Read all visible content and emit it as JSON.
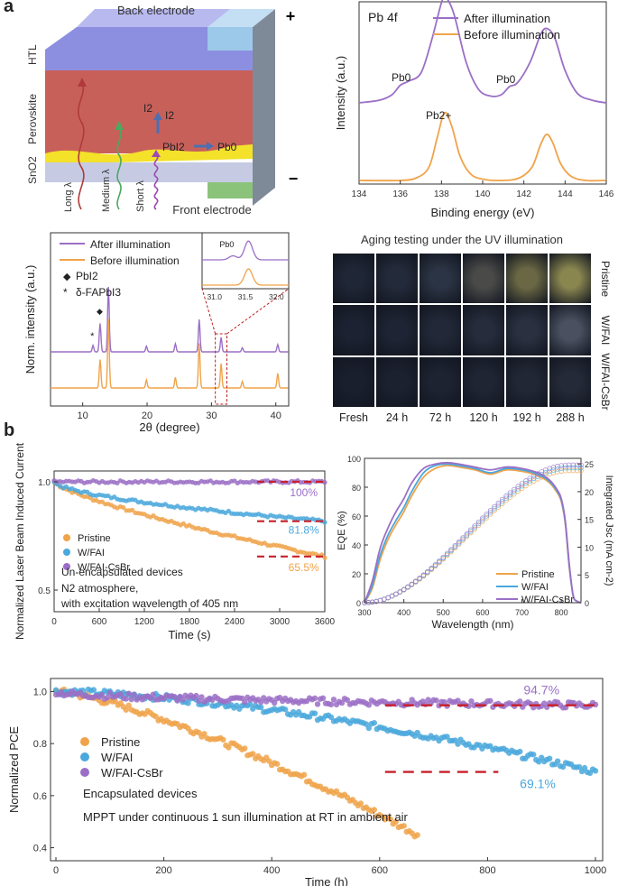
{
  "figure": {
    "panel_a_label": "a",
    "panel_b_label": "b"
  },
  "device_schematic": {
    "back_electrode": "Back electrode",
    "front_electrode": "Front electrode",
    "plus_sign": "+",
    "minus_sign": "−",
    "layers": {
      "htl": "HTL",
      "perovskite": "Perovskite",
      "sno2": "SnO2"
    },
    "species": {
      "i2_a": "I2",
      "i2_b": "I2",
      "pbi2": "PbI2",
      "pb0": "Pb0"
    },
    "light": {
      "long": "Long λ",
      "medium": "Medium λ",
      "short": "Short λ"
    },
    "colors": {
      "htl": "#8c8fe0",
      "perovskite": "#c8605a",
      "sno2": "#c6cbe3",
      "yellow": "#f3e12a",
      "back_electrode": "#9cc9e9",
      "front_electrode": "#8cc37a"
    }
  },
  "xps": {
    "title": "Pb 4f",
    "pb0_left": "Pb0",
    "pb0_right": "Pb0",
    "pb2plus": "Pb2+"
  },
  "xrd_inset": {
    "pb0_label": "Pb0",
    "ticks": [
      "31.0",
      "31.5",
      "32.0"
    ]
  },
  "xrd_markers": {
    "pbi2": "PbI2",
    "dfapbi3": "δ-FAPbI3",
    "diamond": "◆",
    "star": "*"
  },
  "aging": {
    "title": "Aging testing under the UV illumination",
    "rows": [
      "Pristine",
      "W/FAI",
      "W/FAI-CsBr"
    ],
    "columns": [
      "Fresh",
      "24 h",
      "72 h",
      "120 h",
      "192 h",
      "288 h"
    ]
  },
  "lbic_notes": {
    "line1": "Un-encapsulated devices",
    "line2": "N2 atmosphere,",
    "line3": "with excitation wavelength of 405 nm"
  },
  "mppt_notes": {
    "line1": "Encapsulated devices",
    "line2": "MPPT under continuous 1 sun illumination at RT in ambient air"
  },
  "chart_data": [
    {
      "id": "xps",
      "type": "line",
      "title": "Pb 4f",
      "xlabel": "Binding energy (eV)",
      "ylabel": "Intensity (a.u.)",
      "xlim": [
        134,
        146
      ],
      "xticks": [
        "134",
        "136",
        "138",
        "140",
        "142",
        "144",
        "146"
      ],
      "legend": [
        "After illumination",
        "Before illumination"
      ],
      "series": [
        {
          "name": "After illumination",
          "color": "#9b6fc6",
          "x": [
            134,
            135,
            135.6,
            136.0,
            136.4,
            137.0,
            137.5,
            138.0,
            138.2,
            138.6,
            139.2,
            139.8,
            140.4,
            140.9,
            141.3,
            141.7,
            142.3,
            142.8,
            143.1,
            143.5,
            144.0,
            144.6,
            145.3,
            146
          ],
          "y": [
            0.0,
            0.02,
            0.06,
            0.13,
            0.16,
            0.22,
            0.45,
            0.74,
            0.78,
            0.66,
            0.3,
            0.1,
            0.05,
            0.06,
            0.12,
            0.15,
            0.3,
            0.5,
            0.55,
            0.48,
            0.24,
            0.07,
            0.02,
            0.0
          ]
        },
        {
          "name": "Before illumination",
          "color": "#f0a34a",
          "x": [
            134,
            136,
            136.8,
            137.4,
            137.8,
            138.15,
            138.5,
            138.9,
            139.4,
            140,
            141,
            141.8,
            142.4,
            142.8,
            143.1,
            143.4,
            143.8,
            144.3,
            145,
            146
          ],
          "y": [
            0.0,
            0.0,
            0.02,
            0.1,
            0.32,
            0.5,
            0.4,
            0.18,
            0.05,
            0.01,
            0.0,
            0.02,
            0.1,
            0.26,
            0.34,
            0.28,
            0.12,
            0.03,
            0.0,
            0.0
          ]
        }
      ]
    },
    {
      "id": "xrd",
      "type": "line",
      "xlabel": "2θ (degree)",
      "ylabel": "Norm. intensity (a.u.)",
      "xlim": [
        5,
        42
      ],
      "xticks": [
        "10",
        "20",
        "30",
        "40"
      ],
      "legend": [
        "After illumination",
        "Before illumination"
      ],
      "series": [
        {
          "name": "After illumination",
          "color": "#9b6fc6",
          "peaks": [
            [
              11.6,
              0.08
            ],
            [
              12.7,
              0.35
            ],
            [
              14.0,
              0.8
            ],
            [
              19.9,
              0.07
            ],
            [
              24.4,
              0.1
            ],
            [
              28.1,
              0.4
            ],
            [
              31.5,
              0.18
            ],
            [
              34.8,
              0.05
            ],
            [
              40.3,
              0.09
            ]
          ]
        },
        {
          "name": "Before illumination",
          "color": "#f0a34a",
          "peaks": [
            [
              12.7,
              0.35
            ],
            [
              14.0,
              0.85
            ],
            [
              19.9,
              0.1
            ],
            [
              24.4,
              0.13
            ],
            [
              28.1,
              0.55
            ],
            [
              31.5,
              0.3
            ],
            [
              34.8,
              0.08
            ],
            [
              40.3,
              0.18
            ]
          ]
        }
      ]
    },
    {
      "id": "lbic",
      "type": "scatter",
      "xlabel": "Time (s)",
      "ylabel": "Normalized Laser Beam Induced Current",
      "xlim": [
        0,
        3600
      ],
      "ylim": [
        0.4,
        1.05
      ],
      "xticks": [
        "0",
        "600",
        "1200",
        "1800",
        "2400",
        "3000",
        "3600"
      ],
      "yticks": [
        "0.5",
        "1.0"
      ],
      "annotations": [
        "100%",
        "81.8%",
        "65.5%"
      ],
      "series": [
        {
          "name": "Pristine",
          "color": "#f0a34a",
          "start": 1.0,
          "end": 0.655,
          "shape": 0.75
        },
        {
          "name": "W/FAI",
          "color": "#4aa8dc",
          "start": 1.0,
          "end": 0.818,
          "shape": 0.6
        },
        {
          "name": "W/FAI-CsBr",
          "color": "#9b6fc6",
          "start": 1.0,
          "end": 1.0,
          "shape": 1.0
        }
      ]
    },
    {
      "id": "eqe",
      "type": "line",
      "xlabel": "Wavelength (nm)",
      "ylabel": "EQE (%)",
      "y2label": "Integrated Jsc (mA cm-2)",
      "xlim": [
        300,
        850
      ],
      "ylim": [
        0,
        100
      ],
      "y2lim": [
        0,
        26
      ],
      "xticks": [
        "300",
        "400",
        "500",
        "600",
        "700",
        "800"
      ],
      "yticks": [
        "0",
        "20",
        "40",
        "60",
        "80",
        "100"
      ],
      "y2ticks": [
        "0",
        "5",
        "10",
        "15",
        "20",
        "25"
      ],
      "legend": [
        "Pristine",
        "W/FAI",
        "W/FAI-CsBr"
      ],
      "series": [
        {
          "name": "Pristine",
          "color": "#f0a34a",
          "x": [
            300,
            320,
            340,
            360,
            380,
            400,
            420,
            450,
            480,
            510,
            540,
            580,
            620,
            660,
            700,
            740,
            770,
            790,
            800,
            810,
            820,
            830,
            840,
            850
          ],
          "y": [
            0,
            10,
            30,
            44,
            54,
            63,
            74,
            87,
            93,
            95,
            94,
            92,
            89,
            92,
            91,
            88,
            83,
            76,
            70,
            55,
            25,
            5,
            1,
            0
          ]
        },
        {
          "name": "W/FAI",
          "color": "#4aa8dc",
          "x": [
            300,
            320,
            340,
            360,
            380,
            400,
            420,
            450,
            480,
            510,
            540,
            580,
            620,
            660,
            700,
            740,
            770,
            790,
            800,
            810,
            820,
            830,
            840,
            850
          ],
          "y": [
            0,
            12,
            33,
            47,
            57,
            66,
            77,
            90,
            95,
            96,
            95,
            93,
            90,
            93,
            92,
            89,
            84,
            77,
            71,
            56,
            26,
            5,
            1,
            0
          ]
        },
        {
          "name": "W/FAI-CsBr",
          "color": "#9b6fc6",
          "x": [
            300,
            320,
            340,
            360,
            380,
            400,
            420,
            450,
            480,
            510,
            540,
            580,
            620,
            660,
            700,
            740,
            770,
            790,
            800,
            810,
            820,
            830,
            840,
            850
          ],
          "y": [
            0,
            15,
            38,
            52,
            63,
            72,
            83,
            93,
            96,
            97,
            96,
            94,
            92,
            94,
            93,
            90,
            85,
            78,
            72,
            57,
            27,
            5,
            1,
            0
          ]
        }
      ],
      "jsc_end": [
        23.8,
        24.3,
        24.8
      ]
    },
    {
      "id": "mppt",
      "type": "scatter",
      "xlabel": "Time (h)",
      "ylabel": "Normalized PCE",
      "xlim": [
        0,
        1000
      ],
      "ylim": [
        0.35,
        1.05
      ],
      "xticks": [
        "0",
        "200",
        "400",
        "600",
        "800",
        "1000"
      ],
      "yticks": [
        "0.4",
        "0.6",
        "0.8",
        "1.0"
      ],
      "annotations": [
        "94.7%",
        "69.1%"
      ],
      "series": [
        {
          "name": "Pristine",
          "color": "#f0a34a",
          "t_end": 670,
          "start": 1.0,
          "end": 0.45
        },
        {
          "name": "W/FAI",
          "color": "#4aa8dc",
          "t_end": 1000,
          "start": 1.0,
          "end": 0.691
        },
        {
          "name": "W/FAI-CsBr",
          "color": "#9b6fc6",
          "t_end": 1000,
          "start": 1.0,
          "end": 0.947
        }
      ]
    }
  ]
}
